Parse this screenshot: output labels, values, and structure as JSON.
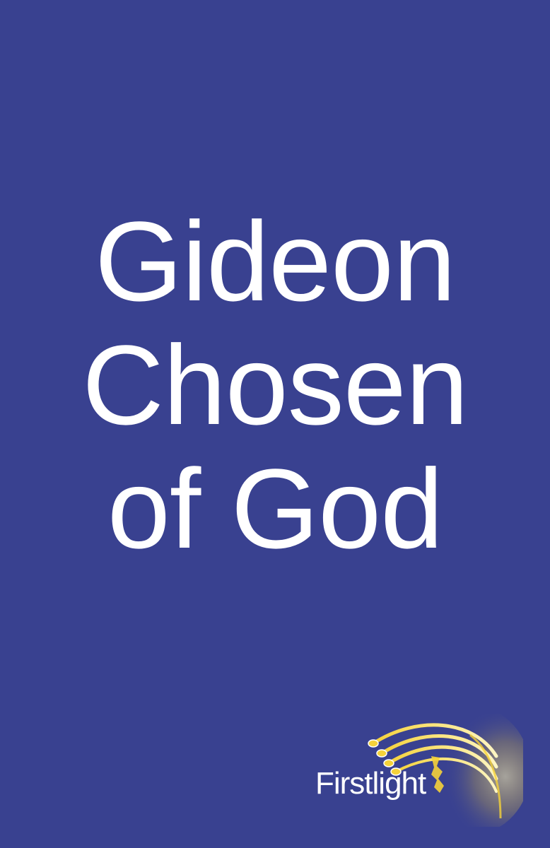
{
  "cover": {
    "background_color": "#394190",
    "title_lines": [
      "Gideon",
      "Chosen",
      "of God"
    ]
  },
  "publisher": {
    "name": "Firstlight",
    "logo_icon": "comet-rays-icon",
    "accent_color": "#f5d23a"
  }
}
